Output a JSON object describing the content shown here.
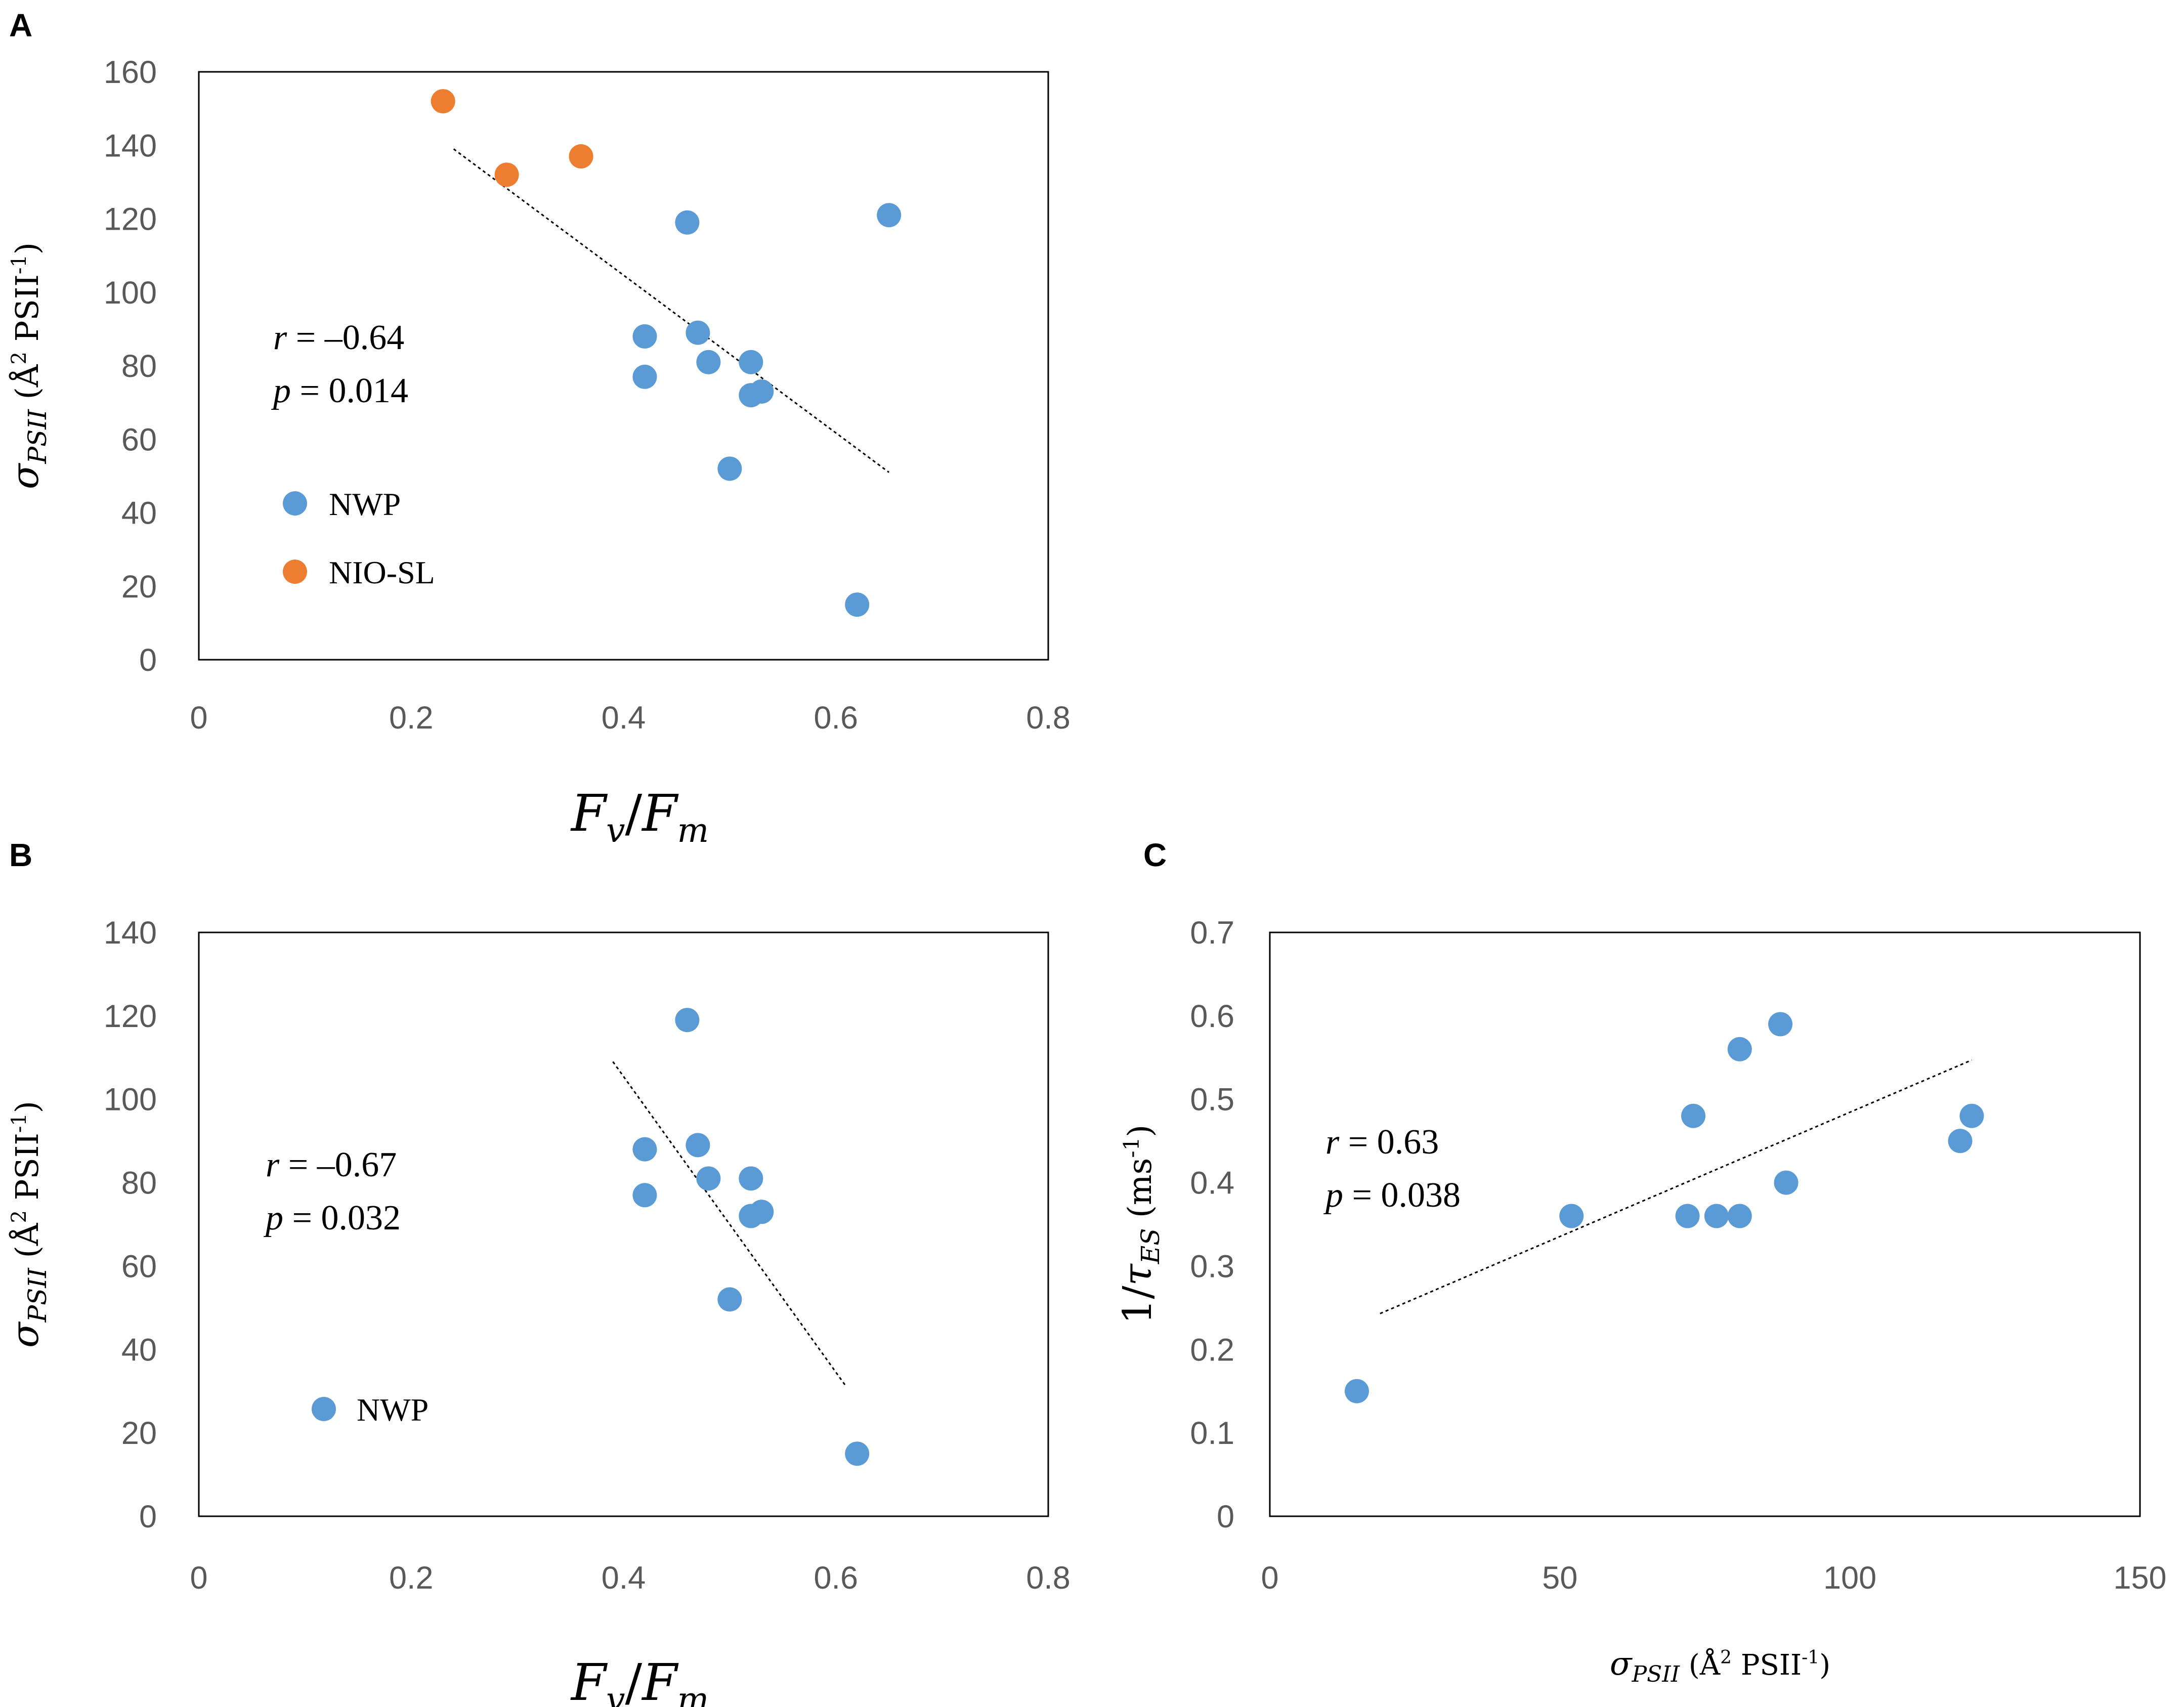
{
  "colors": {
    "nwp": "#5B9BD5",
    "nio_sl": "#ED7D31",
    "trend": "#000000",
    "frame": "#000000",
    "ticks": "#595959"
  },
  "chart_data": [
    {
      "id": "A",
      "panel_label": "A",
      "type": "scatter",
      "xlim": [
        0,
        0.8
      ],
      "ylim": [
        0,
        160
      ],
      "xticks": [
        0,
        0.2,
        0.4,
        0.6,
        0.8
      ],
      "yticks": [
        0,
        20,
        40,
        60,
        80,
        100,
        120,
        140,
        160
      ],
      "xtick_labels": [
        "0",
        "0.2",
        "0.4",
        "0.6",
        "0.8"
      ],
      "ytick_labels": [
        "0",
        "20",
        "40",
        "60",
        "80",
        "100",
        "120",
        "140",
        "160"
      ],
      "xlabel": {
        "main": "F",
        "sub1": "v",
        "sep": "/",
        "main2": "F",
        "sub2": "m"
      },
      "ylabel": {
        "sigma": "σ",
        "sub": "PSII",
        "unit_pre": " (Å",
        "sup1": "2",
        "unit_mid": " PSII",
        "sup2": "-1",
        "unit_post": ")"
      },
      "stats": {
        "r_sym": "r",
        "r_val": " = –0.64",
        "p_sym": "p",
        "p_val": " = 0.014"
      },
      "series": [
        {
          "name": "NWP",
          "color_key": "nwp",
          "points": [
            [
              0.46,
              119
            ],
            [
              0.65,
              121
            ],
            [
              0.42,
              88
            ],
            [
              0.47,
              89
            ],
            [
              0.42,
              77
            ],
            [
              0.48,
              81
            ],
            [
              0.52,
              81
            ],
            [
              0.52,
              72
            ],
            [
              0.53,
              73
            ],
            [
              0.5,
              52
            ],
            [
              0.62,
              15
            ]
          ]
        },
        {
          "name": "NIO-SL",
          "color_key": "nio_sl",
          "points": [
            [
              0.23,
              152
            ],
            [
              0.29,
              132
            ],
            [
              0.36,
              137
            ]
          ]
        }
      ],
      "trendline": [
        [
          0.24,
          139
        ],
        [
          0.65,
          51
        ]
      ],
      "legend": [
        "NWP",
        "NIO-SL"
      ]
    },
    {
      "id": "B",
      "panel_label": "B",
      "type": "scatter",
      "xlim": [
        0,
        0.8
      ],
      "ylim": [
        0,
        140
      ],
      "xticks": [
        0,
        0.2,
        0.4,
        0.6,
        0.8
      ],
      "yticks": [
        0,
        20,
        40,
        60,
        80,
        100,
        120,
        140
      ],
      "xtick_labels": [
        "0",
        "0.2",
        "0.4",
        "0.6",
        "0.8"
      ],
      "ytick_labels": [
        "0",
        "20",
        "40",
        "60",
        "80",
        "100",
        "120",
        "140"
      ],
      "xlabel": {
        "main": "F",
        "sub1": "v",
        "sep": "/",
        "main2": "F",
        "sub2": "m"
      },
      "ylabel": {
        "sigma": "σ",
        "sub": "PSII",
        "unit_pre": " (Å",
        "sup1": "2",
        "unit_mid": " PSII",
        "sup2": "-1",
        "unit_post": ")"
      },
      "stats": {
        "r_sym": "r",
        "r_val": " = –0.67",
        "p_sym": "p",
        "p_val": " = 0.032"
      },
      "series": [
        {
          "name": "NWP",
          "color_key": "nwp",
          "points": [
            [
              0.46,
              119
            ],
            [
              0.42,
              88
            ],
            [
              0.47,
              89
            ],
            [
              0.42,
              77
            ],
            [
              0.48,
              81
            ],
            [
              0.52,
              81
            ],
            [
              0.52,
              72
            ],
            [
              0.53,
              73
            ],
            [
              0.5,
              52
            ],
            [
              0.62,
              15
            ]
          ]
        }
      ],
      "trendline": [
        [
          0.39,
          109
        ],
        [
          0.61,
          31
        ]
      ],
      "legend": [
        "NWP"
      ]
    },
    {
      "id": "C",
      "panel_label": "C",
      "type": "scatter",
      "xlim": [
        0,
        150
      ],
      "ylim": [
        0,
        0.7
      ],
      "xticks": [
        0,
        50,
        100,
        150
      ],
      "yticks": [
        0,
        0.1,
        0.2,
        0.3,
        0.4,
        0.5,
        0.6,
        0.7
      ],
      "xtick_labels": [
        "0",
        "50",
        "100",
        "150"
      ],
      "ytick_labels": [
        "0",
        "0.1",
        "0.2",
        "0.3",
        "0.4",
        "0.5",
        "0.6",
        "0.7"
      ],
      "xlabel": {
        "sigma": "σ",
        "sub": "PSII",
        "unit_pre": " (Å",
        "sup1": "2",
        "unit_mid": " PSII",
        "sup2": "-1",
        "unit_post": ")"
      },
      "ylabel": {
        "prefix": "1/",
        "tau": "τ",
        "sub": "ES",
        "unit_pre": " (ms",
        "sup": "-1",
        "unit_post": ")"
      },
      "stats": {
        "r_sym": "r",
        "r_val": " = 0.63",
        "p_sym": "p",
        "p_val": " = 0.038"
      },
      "series": [
        {
          "name": "NWP",
          "color_key": "nwp",
          "points": [
            [
              15,
              0.15
            ],
            [
              52,
              0.36
            ],
            [
              72,
              0.36
            ],
            [
              77,
              0.36
            ],
            [
              81,
              0.36
            ],
            [
              73,
              0.48
            ],
            [
              81,
              0.56
            ],
            [
              88,
              0.59
            ],
            [
              89,
              0.4
            ],
            [
              119,
              0.45
            ],
            [
              121,
              0.48
            ]
          ]
        }
      ],
      "trendline": [
        [
          19,
          0.243
        ],
        [
          121,
          0.547
        ]
      ],
      "legend": []
    }
  ]
}
